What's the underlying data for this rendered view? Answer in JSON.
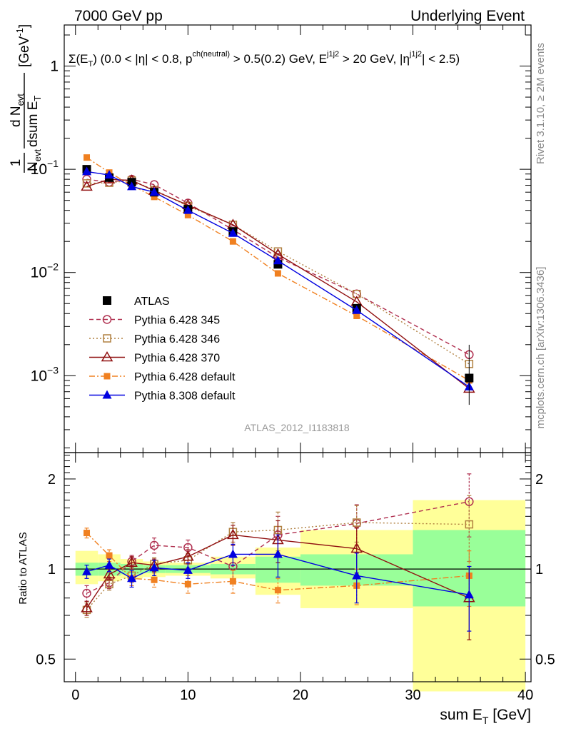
{
  "header": {
    "left": "7000 GeV pp",
    "right": "Underlying Event"
  },
  "side_labels": {
    "top": "Rivet 3.1.10, ≥ 2M events",
    "bottom": "mcplots.cern.ch [arXiv:1306.3436]"
  },
  "colors": {
    "ATLAS": "#000000",
    "p345": "#b03050",
    "p346": "#b08040",
    "p370": "#901010",
    "p6def": "#f08020",
    "p8def": "#0000e0",
    "band_inner": "#99ff99",
    "band_outer": "#ffff99"
  },
  "chart_data": [
    {
      "type": "scatter",
      "panel": "main",
      "title": "Σ(E_T) (0.0 < |η| < 0.8, p^ch(neutral) > 0.5(0.2) GeV, E_T^j1j2 > 20 GeV, |η^j1j2| < 2.5)",
      "title_parts": {
        "sigma": "Σ(E",
        "sub_t": "T",
        "mid1": ") (0.0 < |η| < 0.8, p",
        "sup_ch": "ch(neutral)",
        "mid2": " > 0.5(0.2) GeV, E",
        "sup_j": "j1j2",
        "mid3": " > 20 GeV, |η",
        "sup_eta": "j1j2",
        "end": "| < 2.5)"
      },
      "ylabel": "1/N_evt dN_evt/dsum E_T [GeV^-1]",
      "ylabel_parts": {
        "one": "1",
        "n": "N",
        "evt": "evt",
        "d": "d N",
        "dsum": "dsum E",
        "t": "T",
        "unit": "[GeV",
        "exp": "-1",
        "close": "]"
      },
      "yscale": "log",
      "ylim": [
        0.00018,
        2.5
      ],
      "yticks": [
        {
          "value": 0.001,
          "base": "10",
          "exp": "−3"
        },
        {
          "value": 0.01,
          "base": "10",
          "exp": "−2"
        },
        {
          "value": 0.1,
          "base": "10",
          "exp": "−1"
        },
        {
          "value": 1,
          "base": "1",
          "exp": ""
        }
      ],
      "xlim": [
        -1,
        40.5
      ],
      "watermark": "ATLAS_2012_I1183818",
      "legend_position": "lower-left",
      "series": [
        {
          "name": "ATLAS",
          "key": "ATLAS",
          "marker": "square-filled",
          "dash": "none",
          "x": [
            1,
            3,
            5,
            7,
            10,
            14,
            18,
            25,
            35
          ],
          "y": [
            0.1,
            0.083,
            0.075,
            0.06,
            0.041,
            0.025,
            0.012,
            0.0045,
            0.00095
          ]
        },
        {
          "name": "Pythia 6.428 345",
          "key": "p345",
          "marker": "circle-open",
          "dash": "6,4",
          "x": [
            1,
            3,
            5,
            7,
            10,
            14,
            18,
            25,
            35
          ],
          "y": [
            0.08,
            0.075,
            0.08,
            0.071,
            0.047,
            0.026,
            0.014,
            0.0062,
            0.0016
          ]
        },
        {
          "name": "Pythia 6.428 346",
          "key": "p346",
          "marker": "square-open",
          "dash": "2,3",
          "x": [
            1,
            3,
            5,
            7,
            10,
            14,
            18,
            25,
            35
          ],
          "y": [
            0.073,
            0.074,
            0.078,
            0.063,
            0.044,
            0.029,
            0.016,
            0.0062,
            0.0013
          ]
        },
        {
          "name": "Pythia 6.428 370",
          "key": "p370",
          "marker": "triangle-open",
          "dash": "none",
          "x": [
            1,
            3,
            5,
            7,
            10,
            14,
            18,
            25,
            35
          ],
          "y": [
            0.068,
            0.08,
            0.078,
            0.062,
            0.045,
            0.029,
            0.015,
            0.0052,
            0.00075
          ]
        },
        {
          "name": "Pythia 6.428 default",
          "key": "p6def",
          "marker": "square-filled-small",
          "dash": "8,3,2,3",
          "x": [
            1,
            3,
            5,
            7,
            10,
            14,
            18,
            25,
            35
          ],
          "y": [
            0.13,
            0.093,
            0.07,
            0.054,
            0.036,
            0.02,
            0.0098,
            0.0038,
            0.0009
          ]
        },
        {
          "name": "Pythia 8.308 default",
          "key": "p8def",
          "marker": "triangle-filled",
          "dash": "none",
          "x": [
            1,
            3,
            5,
            7,
            10,
            14,
            18,
            25,
            35
          ],
          "y": [
            0.095,
            0.088,
            0.068,
            0.06,
            0.04,
            0.024,
            0.013,
            0.0043,
            0.00078
          ]
        }
      ]
    },
    {
      "type": "scatter",
      "panel": "ratio",
      "ylabel": "Ratio to ATLAS",
      "xlabel": "sum E_T [GeV]",
      "xlabel_parts": {
        "main": "sum E",
        "sub": "T",
        "unit": " [GeV]"
      },
      "yscale": "log",
      "ylim": [
        0.42,
        2.45
      ],
      "yticks": [
        {
          "value": 0.5,
          "label": "0.5"
        },
        {
          "value": 1,
          "label": "1"
        },
        {
          "value": 2,
          "label": "2"
        }
      ],
      "xlim": [
        -1,
        40.5
      ],
      "xticks": [
        0,
        10,
        20,
        30,
        40
      ],
      "bands": [
        {
          "x0": 0,
          "x1": 2,
          "inner": [
            0.95,
            1.05
          ],
          "outer": [
            0.89,
            1.15
          ]
        },
        {
          "x0": 2,
          "x1": 4,
          "inner": [
            0.95,
            1.05
          ],
          "outer": [
            0.91,
            1.12
          ]
        },
        {
          "x0": 4,
          "x1": 6,
          "inner": [
            0.96,
            1.04
          ],
          "outer": [
            0.93,
            1.08
          ]
        },
        {
          "x0": 6,
          "x1": 8,
          "inner": [
            0.97,
            1.03
          ],
          "outer": [
            0.94,
            1.06
          ]
        },
        {
          "x0": 8,
          "x1": 12,
          "inner": [
            0.97,
            1.03
          ],
          "outer": [
            0.95,
            1.05
          ]
        },
        {
          "x0": 12,
          "x1": 16,
          "inner": [
            0.96,
            1.04
          ],
          "outer": [
            0.93,
            1.1
          ]
        },
        {
          "x0": 16,
          "x1": 20,
          "inner": [
            0.9,
            1.1
          ],
          "outer": [
            0.82,
            1.18
          ]
        },
        {
          "x0": 20,
          "x1": 30,
          "inner": [
            0.88,
            1.12
          ],
          "outer": [
            0.74,
            1.35
          ]
        },
        {
          "x0": 30,
          "x1": 40,
          "inner": [
            0.75,
            1.35
          ],
          "outer": [
            0.39,
            1.7
          ]
        }
      ],
      "series": [
        {
          "name": "Pythia 6.428 345",
          "key": "p345",
          "marker": "circle-open",
          "dash": "6,4",
          "x": [
            1,
            3,
            5,
            7,
            10,
            14,
            18,
            25,
            35
          ],
          "y": [
            0.83,
            0.9,
            1.06,
            1.2,
            1.18,
            1.02,
            1.3,
            1.42,
            1.68
          ],
          "err": [
            0.05,
            0.04,
            0.05,
            0.07,
            0.07,
            0.1,
            0.2,
            0.22,
            0.4
          ]
        },
        {
          "name": "Pythia 6.428 346",
          "key": "p346",
          "marker": "square-open",
          "dash": "2,3",
          "x": [
            1,
            3,
            5,
            7,
            10,
            14,
            18,
            25,
            35
          ],
          "y": [
            0.73,
            0.89,
            0.95,
            1.04,
            1.07,
            1.33,
            1.35,
            1.43,
            1.41
          ],
          "err": [
            0.04,
            0.04,
            0.05,
            0.05,
            0.06,
            0.1,
            0.2,
            0.2,
            0.35
          ]
        },
        {
          "name": "Pythia 6.428 370",
          "key": "p370",
          "marker": "triangle-open",
          "dash": "none",
          "x": [
            1,
            3,
            5,
            7,
            10,
            14,
            18,
            25,
            35
          ],
          "y": [
            0.74,
            0.96,
            1.05,
            1.03,
            1.1,
            1.3,
            1.25,
            1.17,
            0.8
          ],
          "err": [
            0.04,
            0.04,
            0.05,
            0.05,
            0.06,
            0.1,
            0.2,
            0.2,
            0.22
          ]
        },
        {
          "name": "Pythia 6.428 default",
          "key": "p6def",
          "marker": "square-filled-small",
          "dash": "8,3,2,3",
          "x": [
            1,
            3,
            5,
            7,
            10,
            14,
            18,
            25,
            35
          ],
          "y": [
            1.32,
            1.11,
            0.93,
            0.92,
            0.89,
            0.91,
            0.85,
            0.88,
            0.95
          ],
          "err": [
            0.05,
            0.05,
            0.05,
            0.05,
            0.06,
            0.08,
            0.08,
            0.12,
            0.2
          ]
        },
        {
          "name": "Pythia 8.308 default",
          "key": "p8def",
          "marker": "triangle-filled",
          "dash": "none",
          "x": [
            1,
            3,
            5,
            7,
            10,
            14,
            18,
            25,
            35
          ],
          "y": [
            0.98,
            1.03,
            0.93,
            1.01,
            0.99,
            1.12,
            1.12,
            0.95,
            0.82
          ],
          "err": [
            0.05,
            0.05,
            0.06,
            0.06,
            0.06,
            0.09,
            0.18,
            0.18,
            0.2
          ]
        }
      ]
    }
  ]
}
